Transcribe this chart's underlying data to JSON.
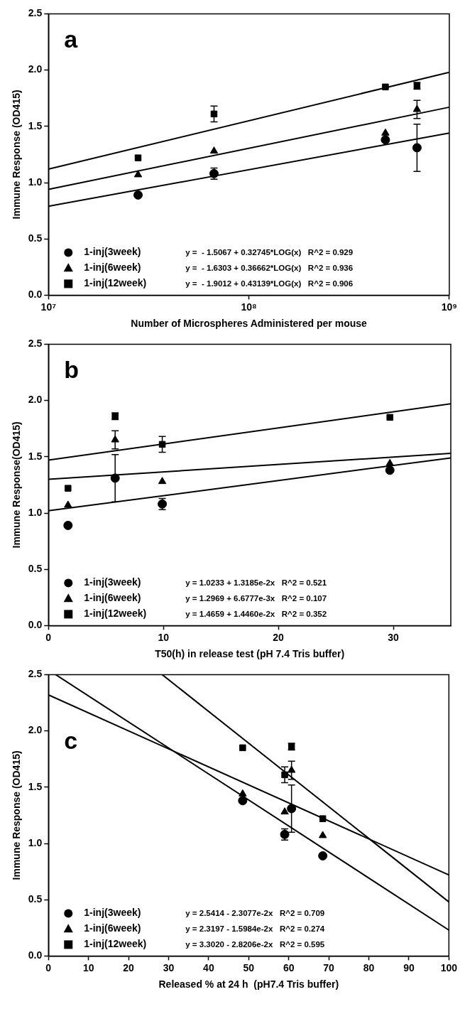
{
  "chart_data": [
    {
      "type": "scatter",
      "title": "a",
      "xlabel": "Number of Microspheres Administered per mouse",
      "ylabel": "Immune Response (OD415)",
      "log": "x",
      "xlim": [
        10000000,
        1000000000
      ],
      "xticks": [
        {
          "value": 10000000,
          "label": "10⁷"
        },
        {
          "value": 100000000,
          "label": "10⁸"
        },
        {
          "value": 1000000000,
          "label": "10⁹"
        }
      ],
      "ylim": [
        0,
        2.5
      ],
      "yticks": [
        {
          "value": 0,
          "label": "0.0"
        },
        {
          "value": 0.5,
          "label": "0.5"
        },
        {
          "value": 1,
          "label": "1.0"
        },
        {
          "value": 1.5,
          "label": "1.5"
        },
        {
          "value": 2,
          "label": "2.0"
        },
        {
          "value": 2.5,
          "label": "2.5"
        }
      ],
      "grid": false,
      "legend": "bottom left",
      "annotations": [
        "y =  - 1.5067 + 0.32745*LOG(x)   R^2 = 0.929",
        "y =  - 1.6303 + 0.36662*LOG(x)   R^2 = 0.936",
        "y =  - 1.9012 + 0.43139*LOG(x)   R^2 = 0.906"
      ],
      "series": [
        {
          "name": "1-inj(3week)",
          "color": "#000000",
          "marker": "circle",
          "x": [
            28000000,
            67000000,
            480000000,
            690000000
          ],
          "values": [
            0.89,
            1.08,
            1.38,
            1.31
          ],
          "errors": [
            null,
            0.05,
            null,
            0.21
          ]
        },
        {
          "name": "1-inj(6week)",
          "color": "#000000",
          "marker": "triangle",
          "x": [
            28000000,
            67000000,
            480000000,
            690000000
          ],
          "values": [
            1.07,
            1.28,
            1.44,
            1.65
          ],
          "errors": [
            null,
            null,
            null,
            0.08
          ]
        },
        {
          "name": "1-inj(12week)",
          "color": "#000000",
          "marker": "square",
          "x": [
            28000000,
            67000000,
            480000000,
            690000000
          ],
          "values": [
            1.22,
            1.61,
            1.85,
            1.86
          ],
          "errors": [
            null,
            0.07,
            null,
            0.03
          ]
        },
        {
          "type": "line",
          "color": "#000000",
          "marker": "none",
          "x": [
            10000000,
            1000000000
          ],
          "values": [
            0.79,
            1.44
          ]
        },
        {
          "type": "line",
          "color": "#000000",
          "marker": "none",
          "x": [
            10000000,
            1000000000
          ],
          "values": [
            0.94,
            1.67
          ]
        },
        {
          "type": "line",
          "color": "#000000",
          "marker": "none",
          "x": [
            10000000,
            1000000000
          ],
          "values": [
            1.12,
            1.98
          ]
        }
      ]
    },
    {
      "type": "scatter",
      "title": "b",
      "xlabel": "T50(h) in release test (pH 7.4 Tris buffer)",
      "ylabel": "Immune Response(OD415)",
      "xlim": [
        0,
        35
      ],
      "xticks": [
        0,
        10,
        20,
        30
      ],
      "ylim": [
        0,
        2.5
      ],
      "yticks": [
        {
          "value": 0,
          "label": "0.0"
        },
        {
          "value": 0.5,
          "label": "0.5"
        },
        {
          "value": 1,
          "label": "1.0"
        },
        {
          "value": 1.5,
          "label": "1.5"
        },
        {
          "value": 2,
          "label": "2.0"
        },
        {
          "value": 2.5,
          "label": "2.5"
        }
      ],
      "grid": false,
      "legend": "bottom left",
      "annotations": [
        "y = 1.0233 + 1.3185e-2x   R^2 = 0.521",
        "y = 1.2969 + 6.6777e-3x   R^2 = 0.107",
        "y = 1.4659 + 1.4460e-2x   R^2 = 0.352"
      ],
      "series": [
        {
          "name": "1-inj(3week)",
          "color": "#000000",
          "marker": "circle",
          "x": [
            1.7,
            9.9,
            29.7,
            5.8
          ],
          "values": [
            0.89,
            1.08,
            1.38,
            1.31
          ],
          "errors": [
            null,
            0.05,
            null,
            0.21
          ]
        },
        {
          "name": "1-inj(6week)",
          "color": "#000000",
          "marker": "triangle",
          "x": [
            1.7,
            9.9,
            29.7,
            5.8
          ],
          "values": [
            1.07,
            1.28,
            1.44,
            1.65
          ],
          "errors": [
            null,
            null,
            null,
            0.08
          ]
        },
        {
          "name": "1-inj(12week)",
          "color": "#000000",
          "marker": "square",
          "x": [
            1.7,
            9.9,
            29.7,
            5.8
          ],
          "values": [
            1.22,
            1.61,
            1.85,
            1.86
          ],
          "errors": [
            null,
            0.07,
            null,
            0.03
          ]
        },
        {
          "type": "line",
          "color": "#000000",
          "marker": "none",
          "x": [
            0,
            35
          ],
          "values": [
            1.02,
            1.49
          ]
        },
        {
          "type": "line",
          "color": "#000000",
          "marker": "none",
          "x": [
            0,
            35
          ],
          "values": [
            1.3,
            1.53
          ]
        },
        {
          "type": "line",
          "color": "#000000",
          "marker": "none",
          "x": [
            0,
            35
          ],
          "values": [
            1.47,
            1.97
          ]
        }
      ]
    },
    {
      "type": "scatter",
      "title": "c",
      "xlabel": "Released % at 24 h  (pH7.4 Tris buffer)",
      "ylabel": "Immune Response (OD415)",
      "xlim": [
        0,
        100
      ],
      "xticks": [
        0,
        10,
        20,
        30,
        40,
        50,
        60,
        70,
        80,
        90,
        100
      ],
      "ylim": [
        0,
        2.5
      ],
      "yticks": [
        {
          "value": 0,
          "label": "0.0"
        },
        {
          "value": 0.5,
          "label": "0.5"
        },
        {
          "value": 1,
          "label": "1.0"
        },
        {
          "value": 1.5,
          "label": "1.5"
        },
        {
          "value": 2,
          "label": "2.0"
        },
        {
          "value": 2.5,
          "label": "2.5"
        }
      ],
      "grid": false,
      "legend": "bottom left",
      "annotations": [
        "y = 2.5414 - 2.3077e-2x   R^2 = 0.709",
        "y = 2.3197 - 1.5984e-2x   R^2 = 0.274",
        "y = 3.3020 - 2.8206e-2x   R^2 = 0.595"
      ],
      "series": [
        {
          "name": "1-inj(3week)",
          "color": "#000000",
          "marker": "circle",
          "x": [
            68.5,
            59,
            48.5,
            60.7
          ],
          "values": [
            0.89,
            1.08,
            1.38,
            1.31
          ],
          "errors": [
            null,
            0.05,
            null,
            0.21
          ]
        },
        {
          "name": "1-inj(6week)",
          "color": "#000000",
          "marker": "triangle",
          "x": [
            68.5,
            59,
            48.5,
            60.7
          ],
          "values": [
            1.07,
            1.28,
            1.44,
            1.65
          ],
          "errors": [
            null,
            null,
            null,
            0.08
          ]
        },
        {
          "name": "1-inj(12week)",
          "color": "#000000",
          "marker": "square",
          "x": [
            68.5,
            59,
            48.5,
            60.7
          ],
          "values": [
            1.22,
            1.61,
            1.85,
            1.86
          ],
          "errors": [
            null,
            0.07,
            null,
            0.03
          ]
        },
        {
          "type": "line",
          "color": "#000000",
          "marker": "none",
          "x": [
            1.8,
            100
          ],
          "values": [
            2.5,
            0.23
          ]
        },
        {
          "type": "line",
          "color": "#000000",
          "marker": "none",
          "x": [
            0,
            100
          ],
          "values": [
            2.32,
            0.72
          ]
        },
        {
          "type": "line",
          "color": "#000000",
          "marker": "none",
          "x": [
            28.4,
            100
          ],
          "values": [
            2.5,
            0.48
          ]
        }
      ]
    }
  ]
}
